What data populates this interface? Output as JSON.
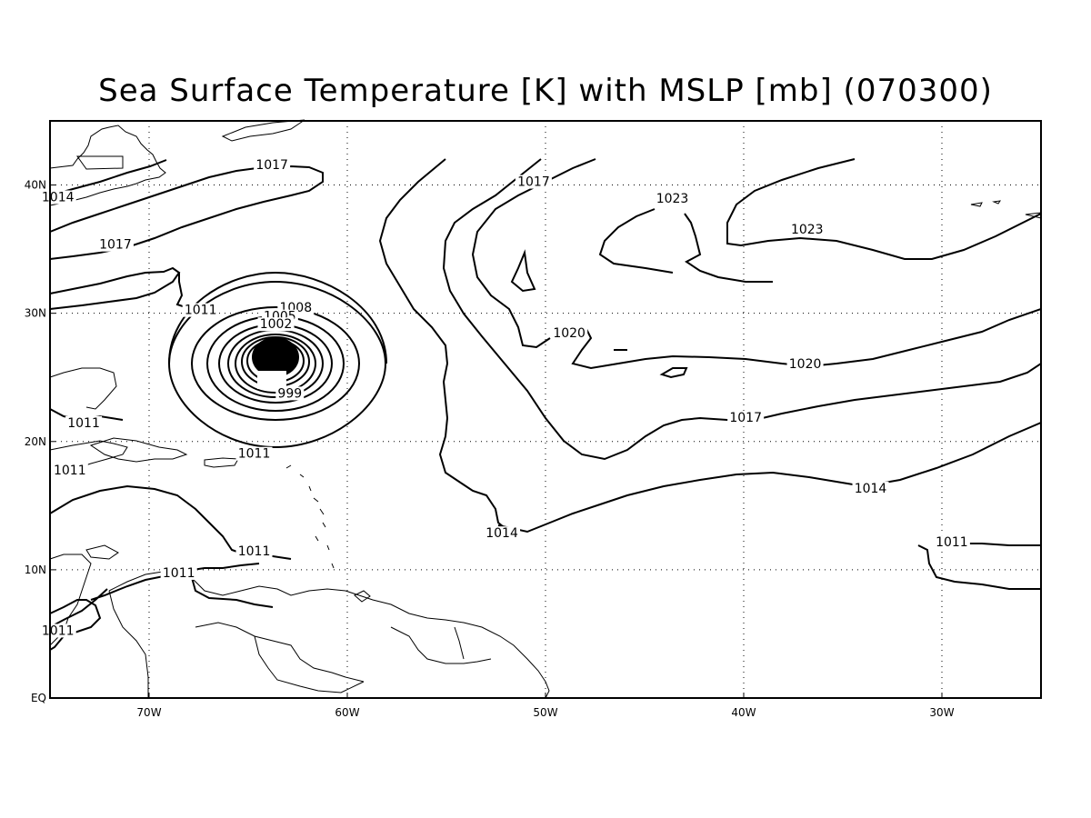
{
  "title": "Sea Surface Temperature [K] with MSLP [mb] (070300)",
  "map": {
    "projection": "lat-lon",
    "extent": {
      "lon_min": -75,
      "lon_max": -25,
      "lat_min": 0,
      "lat_max": 45
    },
    "grid_lines": "dotted",
    "x_ticks": [
      {
        "label": "70W",
        "lon": -70
      },
      {
        "label": "60W",
        "lon": -60
      },
      {
        "label": "50W",
        "lon": -50
      },
      {
        "label": "40W",
        "lon": -40
      },
      {
        "label": "30W",
        "lon": -30
      }
    ],
    "y_ticks": [
      {
        "label": "EQ",
        "lat": 0
      },
      {
        "label": "10N",
        "lat": 10
      },
      {
        "label": "20N",
        "lat": 20
      },
      {
        "label": "30N",
        "lat": 30
      },
      {
        "label": "40N",
        "lat": 40
      }
    ],
    "contour_labels": [
      {
        "text": "1017",
        "lon": -63.8,
        "lat": 41.3
      },
      {
        "text": "1014",
        "lon": -74.6,
        "lat": 38.8
      },
      {
        "text": "1017",
        "lon": -71.7,
        "lat": 35.1
      },
      {
        "text": "1011",
        "lon": -67.4,
        "lat": 30.0
      },
      {
        "text": "1008",
        "lon": -62.6,
        "lat": 30.2
      },
      {
        "text": "1005",
        "lon": -63.4,
        "lat": 29.5
      },
      {
        "text": "1002",
        "lon": -63.6,
        "lat": 28.9
      },
      {
        "text": "999",
        "lon": -62.9,
        "lat": 23.5
      },
      {
        "text": "1011",
        "lon": -73.3,
        "lat": 21.2
      },
      {
        "text": "1011",
        "lon": -64.7,
        "lat": 18.8
      },
      {
        "text": "1011",
        "lon": -74.0,
        "lat": 17.5
      },
      {
        "text": "1011",
        "lon": -64.7,
        "lat": 11.2
      },
      {
        "text": "1011",
        "lon": -68.5,
        "lat": 9.5
      },
      {
        "text": "1011",
        "lon": -74.6,
        "lat": 5.0
      },
      {
        "text": "1017",
        "lon": -50.6,
        "lat": 40.0
      },
      {
        "text": "1023",
        "lon": -43.6,
        "lat": 38.7
      },
      {
        "text": "1023",
        "lon": -36.8,
        "lat": 36.3
      },
      {
        "text": "1020",
        "lon": -48.8,
        "lat": 28.2
      },
      {
        "text": "1020",
        "lon": -36.9,
        "lat": 25.8
      },
      {
        "text": "1017",
        "lon": -39.9,
        "lat": 21.6
      },
      {
        "text": "1014",
        "lon": -52.2,
        "lat": 12.6
      },
      {
        "text": "1014",
        "lon": -33.6,
        "lat": 16.1
      },
      {
        "text": "1011",
        "lon": -29.5,
        "lat": 11.9
      }
    ]
  }
}
